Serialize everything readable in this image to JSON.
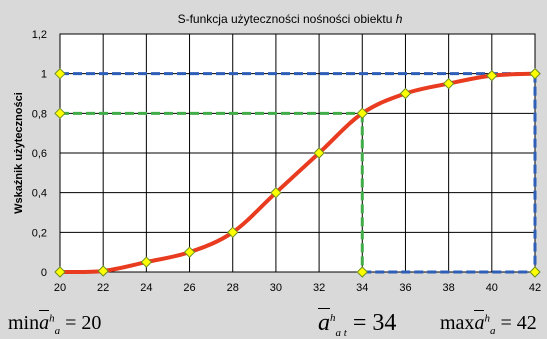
{
  "chart_data": {
    "type": "line",
    "title_parts": [
      "S-funkcja użyteczności nośności obiektu ",
      "h"
    ],
    "ylabel": "Wskaźnik użyteczności",
    "xlabel": "",
    "xlim": [
      20,
      42
    ],
    "ylim": [
      0,
      1.2
    ],
    "x_ticks": [
      "20",
      "22",
      "24",
      "26",
      "28",
      "30",
      "32",
      "34",
      "36",
      "38",
      "40",
      "42"
    ],
    "y_ticks": [
      "0",
      "0,2",
      "0,4",
      "0,6",
      "0,8",
      "1",
      "1,2"
    ],
    "grid": true,
    "series": [
      {
        "color": "#e83b1f",
        "x": [
          20,
          22,
          24,
          26,
          28,
          30,
          32,
          34,
          36,
          38,
          40,
          42
        ],
        "values": [
          0,
          0.005,
          0.05,
          0.1,
          0.2,
          0.4,
          0.6,
          0.8,
          0.9,
          0.95,
          0.99,
          1.0
        ]
      }
    ],
    "reference_lines": [
      {
        "color": "#2e5fb8",
        "points": [
          [
            20,
            1
          ],
          [
            42,
            1
          ]
        ]
      },
      {
        "color": "#2e5fb8",
        "points": [
          [
            42,
            1
          ],
          [
            42,
            0
          ]
        ]
      },
      {
        "color": "#2e5fb8",
        "points": [
          [
            34,
            0
          ],
          [
            42,
            0
          ]
        ]
      },
      {
        "color": "#40ad48",
        "points": [
          [
            20,
            0.8
          ],
          [
            34,
            0.8
          ]
        ]
      },
      {
        "color": "#40ad48",
        "points": [
          [
            34,
            0.8
          ],
          [
            34,
            0
          ]
        ]
      }
    ],
    "marker_color": "#ffff00",
    "marker_edge": "#6b8e23",
    "extra_markers": [
      [
        20,
        1
      ],
      [
        20,
        0.8
      ],
      [
        34,
        0
      ],
      [
        42,
        0
      ],
      [
        42,
        1
      ]
    ]
  },
  "formulas": {
    "min": {
      "prefix": "min",
      "base": "a",
      "sup": "h",
      "sub": "a",
      "rest": " = 20"
    },
    "mid": {
      "base": "a",
      "sup": "h",
      "sub": "a t",
      "rest": " = 34"
    },
    "max": {
      "prefix": "max",
      "base": "a",
      "sup": "h",
      "sub": "a",
      "rest": " = 42"
    }
  },
  "colors": {
    "background": "#d9d9d9",
    "plot_area": "#ffffff",
    "grid": "#000000"
  }
}
